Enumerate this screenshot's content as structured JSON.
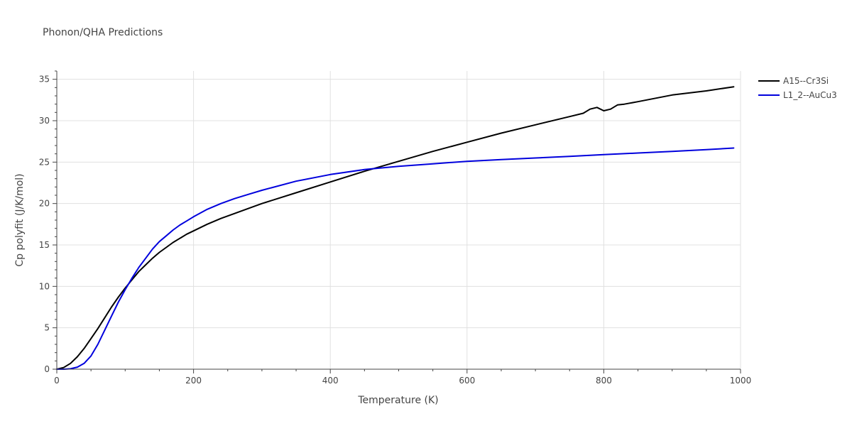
{
  "chart_data": {
    "type": "line",
    "title": "Phonon/QHA Predictions",
    "xlabel": "Temperature (K)",
    "ylabel": "Cp polyfit (J/K/mol)",
    "xlim": [
      0,
      1000
    ],
    "ylim": [
      0,
      36
    ],
    "xticks": [
      0,
      200,
      400,
      600,
      800,
      1000
    ],
    "xtick_labels": [
      "0",
      "200",
      "400",
      "600",
      "800",
      "1000"
    ],
    "yticks": [
      0,
      5,
      10,
      15,
      20,
      25,
      30,
      35
    ],
    "ytick_labels": [
      "0",
      "5",
      "10",
      "15",
      "20",
      "25",
      "30",
      "35"
    ],
    "grid": true,
    "legend_position": "top-right",
    "series": [
      {
        "name": "A15--Cr3Si",
        "color": "#000000",
        "x": [
          0,
          10,
          20,
          30,
          40,
          50,
          60,
          70,
          80,
          90,
          100,
          110,
          120,
          130,
          140,
          150,
          160,
          170,
          180,
          190,
          200,
          220,
          240,
          260,
          280,
          300,
          350,
          400,
          450,
          500,
          550,
          600,
          650,
          700,
          750,
          770,
          780,
          790,
          800,
          810,
          820,
          830,
          850,
          900,
          950,
          990
        ],
        "y": [
          0,
          0.2,
          0.7,
          1.5,
          2.5,
          3.7,
          4.9,
          6.2,
          7.5,
          8.7,
          9.8,
          10.8,
          11.8,
          12.6,
          13.4,
          14.1,
          14.7,
          15.3,
          15.8,
          16.3,
          16.7,
          17.5,
          18.2,
          18.8,
          19.4,
          20.0,
          21.3,
          22.6,
          23.9,
          25.1,
          26.3,
          27.4,
          28.5,
          29.5,
          30.5,
          30.9,
          31.4,
          31.6,
          31.2,
          31.4,
          31.9,
          32.0,
          32.3,
          33.1,
          33.6,
          34.1
        ]
      },
      {
        "name": "L1_2--AuCu3",
        "color": "#0000dd",
        "x": [
          0,
          10,
          20,
          30,
          40,
          50,
          60,
          70,
          80,
          90,
          100,
          110,
          120,
          130,
          140,
          150,
          160,
          170,
          180,
          190,
          200,
          220,
          240,
          260,
          280,
          300,
          350,
          400,
          450,
          500,
          550,
          600,
          650,
          700,
          750,
          800,
          850,
          900,
          950,
          990
        ],
        "y": [
          0,
          0.0,
          0.05,
          0.25,
          0.7,
          1.6,
          3.0,
          4.7,
          6.4,
          8.1,
          9.6,
          11.0,
          12.3,
          13.4,
          14.5,
          15.4,
          16.1,
          16.8,
          17.4,
          17.9,
          18.4,
          19.3,
          20.0,
          20.6,
          21.1,
          21.6,
          22.7,
          23.5,
          24.1,
          24.5,
          24.8,
          25.1,
          25.3,
          25.5,
          25.7,
          25.9,
          26.1,
          26.3,
          26.5,
          26.7
        ]
      }
    ]
  }
}
